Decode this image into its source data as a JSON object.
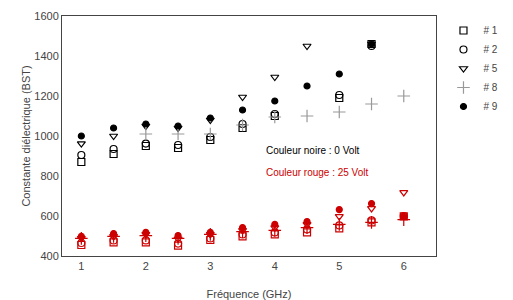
{
  "chart_data": {
    "type": "scatter",
    "xlabel": "Fréquence (GHz)",
    "ylabel": "Constante diélectrique (BST)",
    "xlim": [
      0.7,
      6.5
    ],
    "ylim": [
      400,
      1600
    ],
    "xticks": [
      1,
      2,
      3,
      4,
      5,
      6
    ],
    "yticks": [
      400,
      600,
      800,
      1000,
      1200,
      1400,
      1600
    ],
    "grid": false,
    "legend": "right",
    "annotations": [
      {
        "text": "Couleur noire : 0 Volt",
        "color": "#000000"
      },
      {
        "text": "Couleur rouge : 25 Volt",
        "color": "#cc0000"
      }
    ],
    "series": [
      {
        "name": "# 1",
        "color": "#000000",
        "marker": "square-open",
        "x": [
          1.0,
          1.5,
          2.0,
          2.5,
          3.0,
          3.5,
          4.0,
          5.0,
          5.5
        ],
        "values": [
          870,
          910,
          950,
          940,
          980,
          1040,
          1100,
          1190,
          1460
        ]
      },
      {
        "name": "# 2",
        "color": "#000000",
        "marker": "circle-open",
        "x": [
          1.0,
          1.5,
          2.0,
          2.5,
          3.0,
          3.5,
          4.0,
          5.0,
          5.5
        ],
        "values": [
          905,
          935,
          962,
          955,
          995,
          1060,
          1110,
          1205,
          1450
        ]
      },
      {
        "name": "# 5",
        "color": "#000000",
        "marker": "triangle-down-open",
        "x": [
          1.0,
          1.5,
          2.0,
          2.5,
          3.0,
          3.5,
          4.0,
          4.5,
          5.5
        ],
        "values": [
          962,
          1000,
          1050,
          1040,
          1080,
          1195,
          1295,
          1450,
          1460
        ]
      },
      {
        "name": "# 8",
        "color": "#999999",
        "marker": "cross-thin-open",
        "x": [
          2.0,
          2.5,
          3.0,
          3.5,
          4.0,
          4.5,
          5.0,
          5.5,
          6.0
        ],
        "values": [
          1010,
          1010,
          1010,
          1055,
          1095,
          1100,
          1120,
          1160,
          1200
        ]
      },
      {
        "name": "# 9",
        "color": "#000000",
        "marker": "circle",
        "x": [
          1.0,
          1.5,
          2.0,
          2.5,
          3.0,
          3.5,
          4.0,
          4.5,
          5.0,
          5.5
        ],
        "values": [
          1000,
          1040,
          1060,
          1050,
          1090,
          1130,
          1175,
          1250,
          1310,
          1460
        ]
      },
      {
        "color": "#cc0000",
        "marker": "square-open",
        "x": [
          1.0,
          1.5,
          2.0,
          2.5,
          3.0,
          3.5,
          4.0,
          4.5,
          5.0,
          5.5,
          6.0
        ],
        "values": [
          455,
          468,
          468,
          452,
          480,
          498,
          508,
          518,
          538,
          568,
          598
        ]
      },
      {
        "color": "#cc0000",
        "marker": "circle-open",
        "x": [
          1.0,
          1.5,
          2.0,
          2.5,
          3.0,
          3.5,
          4.0,
          4.5,
          5.0,
          5.5,
          6.0
        ],
        "values": [
          465,
          478,
          478,
          462,
          488,
          508,
          518,
          533,
          553,
          578,
          600
        ]
      },
      {
        "color": "#cc0000",
        "marker": "triangle-down-open",
        "x": [
          1.0,
          1.5,
          2.0,
          2.5,
          3.0,
          3.5,
          4.0,
          4.5,
          5.0,
          5.5,
          6.0
        ],
        "values": [
          488,
          498,
          508,
          486,
          508,
          528,
          542,
          558,
          598,
          638,
          718
        ]
      },
      {
        "color": "#cc0000",
        "marker": "cross-thin-open",
        "x": [
          1.0,
          1.5,
          2.0,
          2.5,
          3.0,
          3.5,
          4.0,
          4.5,
          5.0,
          5.5,
          6.0
        ],
        "values": [
          488,
          498,
          502,
          488,
          508,
          522,
          528,
          542,
          558,
          568,
          582
        ]
      },
      {
        "color": "#cc0000",
        "marker": "circle",
        "x": [
          1.0,
          1.5,
          2.0,
          2.5,
          3.0,
          3.5,
          4.0,
          4.5,
          5.0,
          5.5,
          6.0
        ],
        "values": [
          498,
          512,
          518,
          502,
          518,
          542,
          558,
          572,
          632,
          662,
          598
        ]
      }
    ]
  }
}
